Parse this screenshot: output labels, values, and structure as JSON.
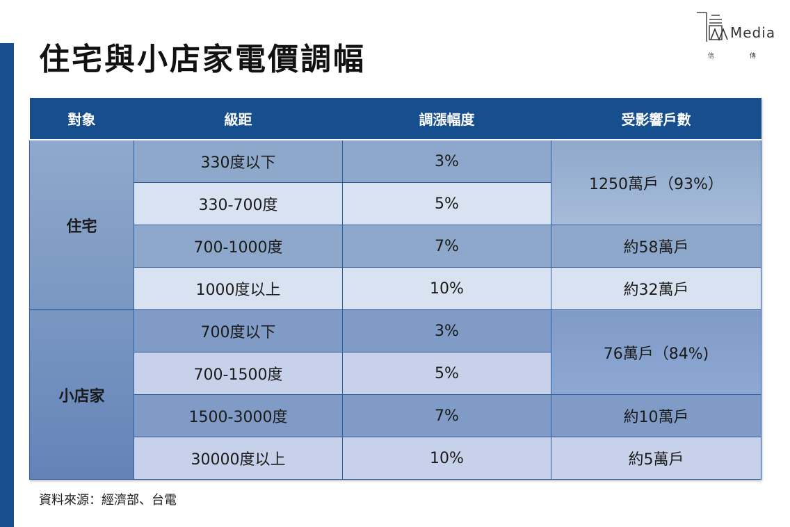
{
  "title": "住宅與小店家電價調幅",
  "logo": {
    "word": "Media",
    "subtitle": "信 傳 媒"
  },
  "table": {
    "headers": [
      "對象",
      "級距",
      "調漲幅度",
      "受影響戶數"
    ],
    "groups": [
      {
        "name": "住宅",
        "rows": [
          {
            "tier": "330度以下",
            "increase": "3%",
            "households": "1250萬戶（93%）"
          },
          {
            "tier": "330-700度",
            "increase": "5%"
          },
          {
            "tier": "700-1000度",
            "increase": "7%",
            "households": "約58萬戶"
          },
          {
            "tier": "1000度以上",
            "increase": "10%",
            "households": "約32萬戶"
          }
        ]
      },
      {
        "name": "小店家",
        "rows": [
          {
            "tier": "700度以下",
            "increase": "3%",
            "households": "76萬戶（84%)"
          },
          {
            "tier": "700-1500度",
            "increase": "5%"
          },
          {
            "tier": "1500-3000度",
            "increase": "7%",
            "households": "約10萬戶"
          },
          {
            "tier": "30000度以上",
            "increase": "10%",
            "households": "約5萬戶"
          }
        ]
      }
    ]
  },
  "source": "資料來源：經濟部、台電",
  "colors": {
    "header": "#174f8e",
    "accent_bar": "#174f8e"
  }
}
